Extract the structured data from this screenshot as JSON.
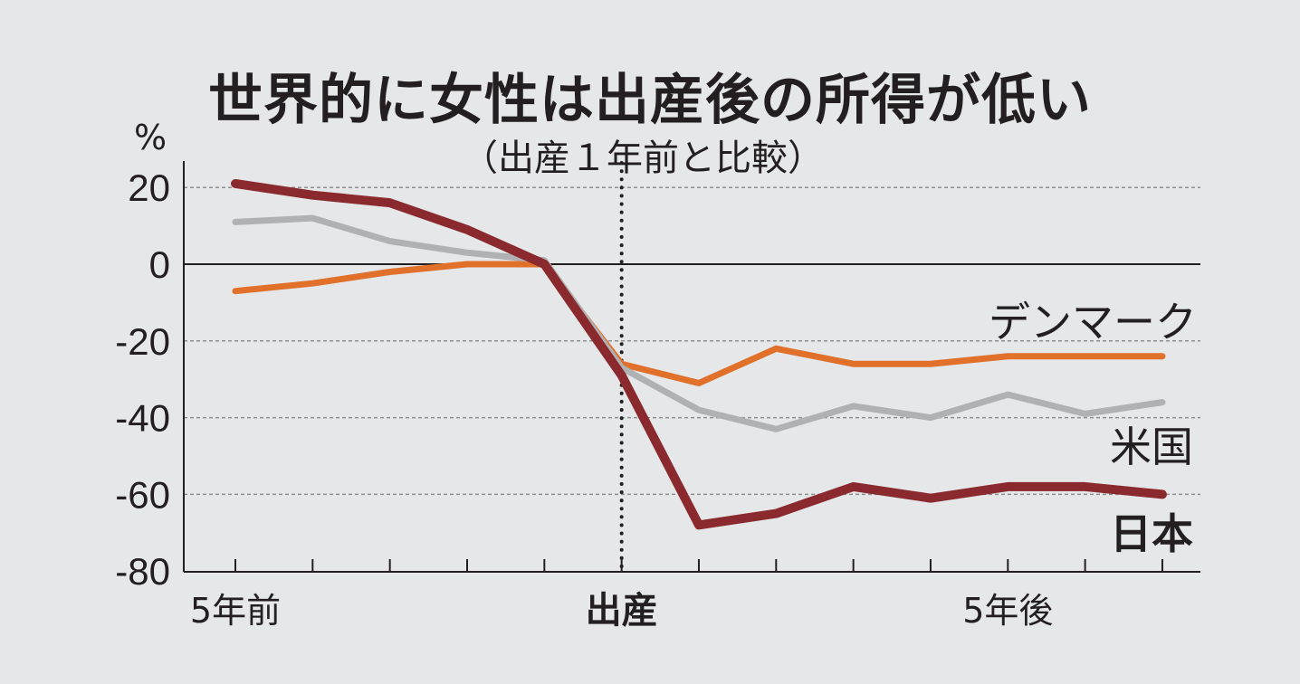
{
  "chart_data": {
    "type": "line",
    "title": "世界的に女性は出産後の所得が低い",
    "subtitle": "（出産１年前と比較）",
    "ylabel": "%",
    "ylim": [
      -80,
      25
    ],
    "yticks": [
      20,
      0,
      -20,
      -40,
      -60,
      -80
    ],
    "ytick_labels": [
      "20",
      "0",
      "-20",
      "-40",
      "-60",
      "-80"
    ],
    "x": [
      -5,
      -4,
      -3,
      -2,
      -1,
      0,
      1,
      2,
      3,
      4,
      5,
      6,
      7
    ],
    "x_labels": [
      {
        "x": -5,
        "label": "5年前"
      },
      {
        "x": 0,
        "label": "出産"
      },
      {
        "x": 5,
        "label": "5年後"
      }
    ],
    "reference_line_x": 0,
    "grid": "dashed-horizontal",
    "series": [
      {
        "name": "デンマーク",
        "color": "#e0702a",
        "values": [
          -7,
          -5,
          -2,
          0,
          0,
          -26,
          -31,
          -22,
          -26,
          -26,
          -24,
          -24,
          -24
        ]
      },
      {
        "name": "米国",
        "color": "#b0b1b3",
        "values": [
          11,
          12,
          6,
          3,
          1,
          -27,
          -38,
          -43,
          -37,
          -40,
          -34,
          -39,
          -36
        ]
      },
      {
        "name": "日本",
        "color": "#8b2a2e",
        "values": [
          21,
          18,
          16,
          9,
          0,
          -29,
          -68,
          -65,
          -58,
          -61,
          -58,
          -58,
          -60
        ]
      }
    ]
  }
}
